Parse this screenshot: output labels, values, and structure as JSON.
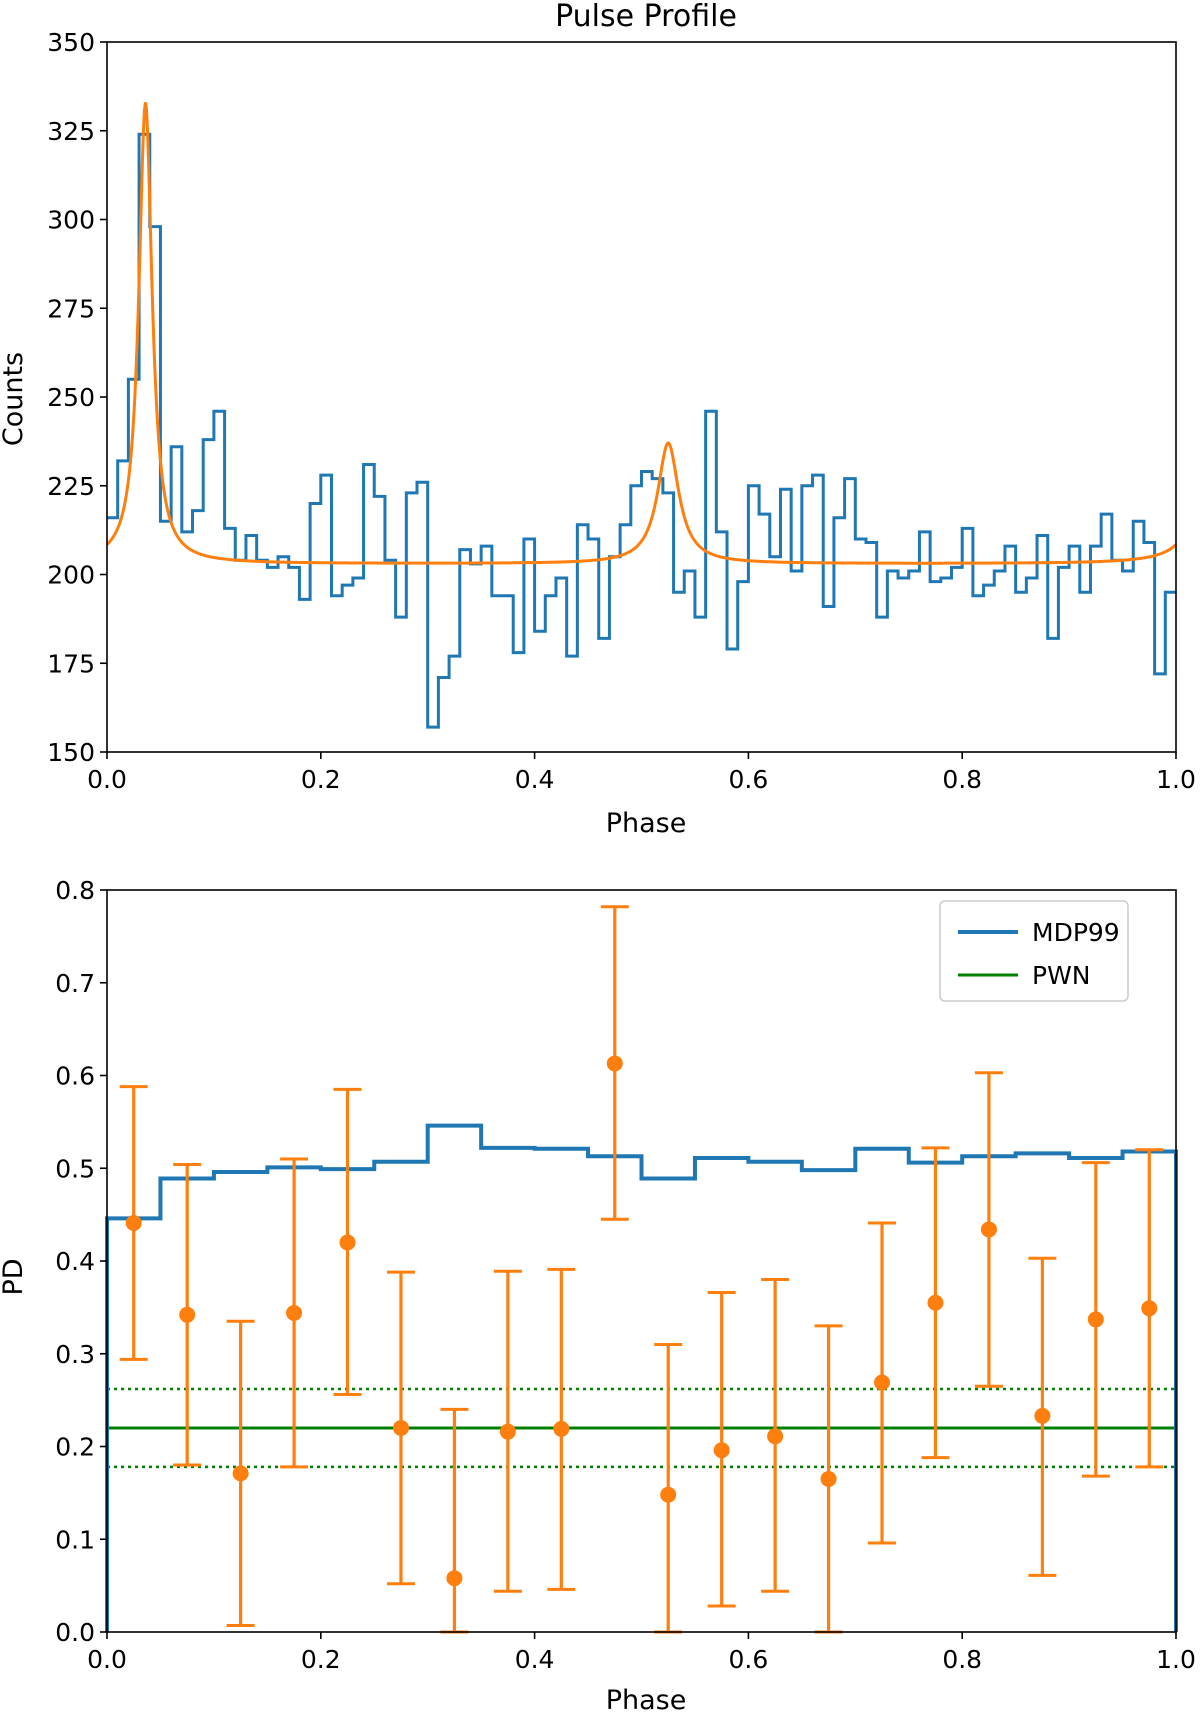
{
  "colors": {
    "blue": "#1f77b4",
    "orange": "#ff7f0e",
    "green": "#008000",
    "axes": "#000000",
    "legend_border": "#cccccc"
  },
  "chart_data": [
    {
      "type": "line",
      "title": "Pulse Profile",
      "xlabel": "Phase",
      "ylabel": "Counts",
      "xlim": [
        0.0,
        1.0
      ],
      "ylim": [
        150,
        350
      ],
      "xticks": [
        0.0,
        0.2,
        0.4,
        0.6,
        0.8,
        1.0
      ],
      "xtick_labels": [
        "0.0",
        "0.2",
        "0.4",
        "0.6",
        "0.8",
        "1.0"
      ],
      "yticks": [
        150,
        175,
        200,
        225,
        250,
        275,
        300,
        325,
        350
      ],
      "ytick_labels": [
        "150",
        "175",
        "200",
        "225",
        "250",
        "275",
        "300",
        "325",
        "350"
      ],
      "grid": false,
      "series": [
        {
          "name": "counts histogram",
          "style": "step",
          "bin_width": 0.01,
          "bin_starts": [
            0.0,
            0.01,
            0.02,
            0.03,
            0.04,
            0.05,
            0.06,
            0.07,
            0.08,
            0.09,
            0.1,
            0.11,
            0.12,
            0.13,
            0.14,
            0.15,
            0.16,
            0.17,
            0.18,
            0.19,
            0.2,
            0.21,
            0.22,
            0.23,
            0.24,
            0.25,
            0.26,
            0.27,
            0.28,
            0.29,
            0.3,
            0.31,
            0.32,
            0.33,
            0.34,
            0.35,
            0.36,
            0.37,
            0.38,
            0.39,
            0.4,
            0.41,
            0.42,
            0.43,
            0.44,
            0.45,
            0.46,
            0.47,
            0.48,
            0.49,
            0.5,
            0.51,
            0.52,
            0.53,
            0.54,
            0.55,
            0.56,
            0.57,
            0.58,
            0.59,
            0.6,
            0.61,
            0.62,
            0.63,
            0.64,
            0.65,
            0.66,
            0.67,
            0.68,
            0.69,
            0.7,
            0.71,
            0.72,
            0.73,
            0.74,
            0.75,
            0.76,
            0.77,
            0.78,
            0.79,
            0.8,
            0.81,
            0.82,
            0.83,
            0.84,
            0.85,
            0.86,
            0.87,
            0.88,
            0.89,
            0.9,
            0.91,
            0.92,
            0.93,
            0.94,
            0.95,
            0.96,
            0.97,
            0.98,
            0.99
          ],
          "values": [
            216,
            232,
            255,
            324,
            298,
            215,
            236,
            212,
            218,
            238,
            246,
            213,
            204,
            211,
            204,
            202,
            205,
            202,
            193,
            220,
            228,
            194,
            197,
            199,
            231,
            222,
            204,
            188,
            223,
            226,
            157,
            171,
            177,
            207,
            203,
            208,
            194,
            194,
            178,
            210,
            184,
            194,
            199,
            177,
            214,
            210,
            182,
            205,
            214,
            225,
            229,
            227,
            223,
            195,
            201,
            188,
            246,
            212,
            179,
            198,
            225,
            217,
            205,
            224,
            201,
            225,
            228,
            191,
            216,
            227,
            210,
            209,
            188,
            201,
            199,
            201,
            212,
            198,
            199,
            202,
            213,
            194,
            197,
            201,
            208,
            195,
            199,
            211,
            182,
            202,
            208,
            195,
            208,
            217,
            204,
            201,
            215,
            209,
            172,
            195
          ]
        },
        {
          "name": "model fit",
          "style": "line",
          "baseline": 203,
          "peaks": [
            {
              "center": 0.036,
              "height": 130,
              "halfwidth": 0.0075
            },
            {
              "center": 0.525,
              "height": 34,
              "halfwidth": 0.012
            }
          ]
        }
      ]
    },
    {
      "type": "scatter",
      "title": "",
      "xlabel": "Phase",
      "ylabel": "PD",
      "xlim": [
        0.0,
        1.0
      ],
      "ylim": [
        0.0,
        0.8
      ],
      "xticks": [
        0.0,
        0.2,
        0.4,
        0.6,
        0.8,
        1.0
      ],
      "xtick_labels": [
        "0.0",
        "0.2",
        "0.4",
        "0.6",
        "0.8",
        "1.0"
      ],
      "yticks": [
        0.0,
        0.1,
        0.2,
        0.3,
        0.4,
        0.5,
        0.6,
        0.7,
        0.8
      ],
      "ytick_labels": [
        "0.0",
        "0.1",
        "0.2",
        "0.3",
        "0.4",
        "0.5",
        "0.6",
        "0.7",
        "0.8"
      ],
      "grid": false,
      "legend_position": "top-right",
      "legend": [
        {
          "label": "MDP99",
          "color": "#1f77b4"
        },
        {
          "label": "PWN",
          "color": "#008000"
        }
      ],
      "series": [
        {
          "name": "MDP99",
          "style": "step",
          "bin_edges": [
            0.0,
            0.05,
            0.1,
            0.15,
            0.2,
            0.25,
            0.3,
            0.35,
            0.4,
            0.45,
            0.5,
            0.55,
            0.6,
            0.65,
            0.7,
            0.75,
            0.8,
            0.85,
            0.9,
            0.95,
            1.0
          ],
          "values": [
            0.446,
            0.489,
            0.496,
            0.501,
            0.499,
            0.507,
            0.546,
            0.522,
            0.521,
            0.513,
            0.489,
            0.511,
            0.507,
            0.498,
            0.521,
            0.506,
            0.513,
            0.516,
            0.511,
            0.518
          ]
        },
        {
          "name": "PWN",
          "style": "hline",
          "value": 0.22,
          "lower": 0.178,
          "upper": 0.262
        },
        {
          "name": "PD",
          "style": "errorbar",
          "x": [
            0.025,
            0.075,
            0.125,
            0.175,
            0.225,
            0.275,
            0.325,
            0.375,
            0.425,
            0.475,
            0.525,
            0.575,
            0.625,
            0.675,
            0.725,
            0.775,
            0.825,
            0.875,
            0.925,
            0.975
          ],
          "y": [
            0.441,
            0.342,
            0.171,
            0.344,
            0.42,
            0.22,
            0.058,
            0.216,
            0.219,
            0.613,
            0.148,
            0.196,
            0.211,
            0.165,
            0.269,
            0.355,
            0.434,
            0.233,
            0.337,
            0.349
          ],
          "err_low": [
            0.294,
            0.18,
            0.007,
            0.178,
            0.256,
            0.052,
            0.0,
            0.044,
            0.046,
            0.445,
            0.0,
            0.028,
            0.044,
            0.0,
            0.096,
            0.188,
            0.265,
            0.061,
            0.168,
            0.178
          ],
          "err_high": [
            0.588,
            0.504,
            0.335,
            0.51,
            0.585,
            0.388,
            0.24,
            0.389,
            0.391,
            0.782,
            0.31,
            0.366,
            0.38,
            0.33,
            0.441,
            0.522,
            0.603,
            0.403,
            0.506,
            0.52
          ]
        }
      ]
    }
  ]
}
